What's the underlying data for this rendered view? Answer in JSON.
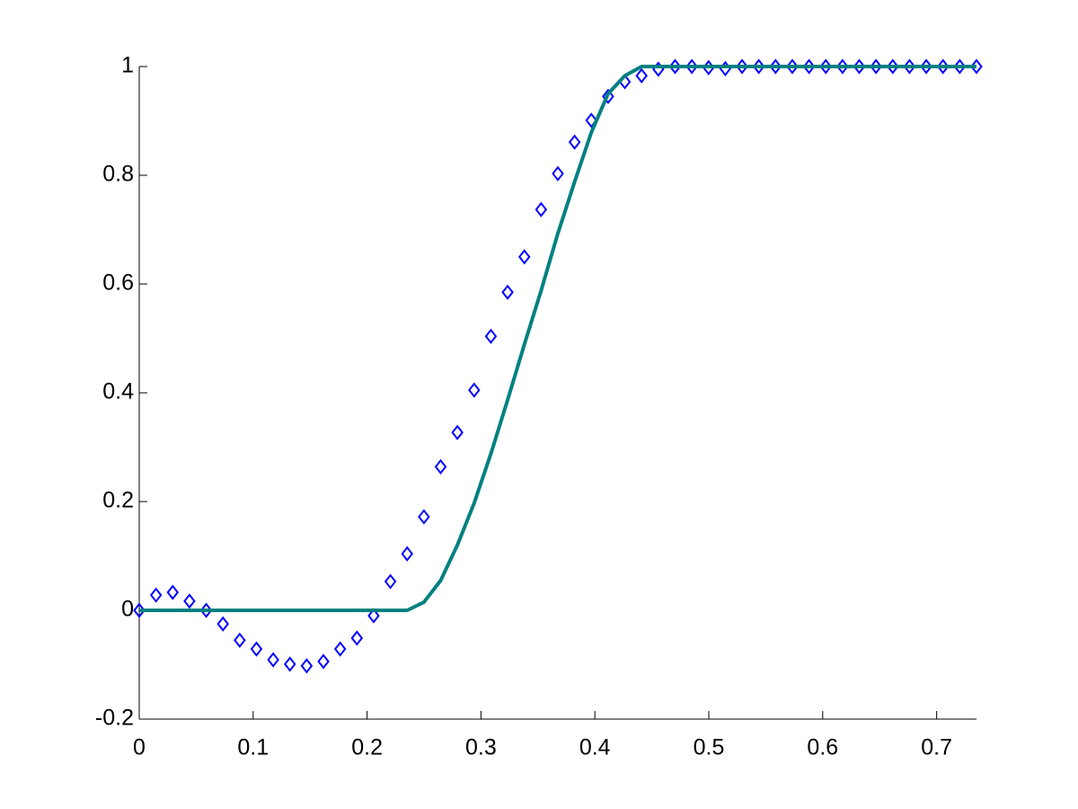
{
  "chart_data": {
    "type": "line",
    "x": [
      0,
      0.0147,
      0.0294,
      0.0441,
      0.0588,
      0.0735,
      0.0882,
      0.1029,
      0.1176,
      0.1323,
      0.147,
      0.1617,
      0.1764,
      0.1911,
      0.2058,
      0.2205,
      0.2352,
      0.2499,
      0.2646,
      0.2793,
      0.294,
      0.3087,
      0.3234,
      0.3381,
      0.3528,
      0.3675,
      0.3822,
      0.3969,
      0.4116,
      0.4263,
      0.441,
      0.4557,
      0.4704,
      0.4851,
      0.4998,
      0.5145,
      0.5292,
      0.5439,
      0.5586,
      0.5733,
      0.588,
      0.6027,
      0.6174,
      0.6321,
      0.6468,
      0.6615,
      0.6762,
      0.6909,
      0.7056,
      0.7203,
      0.735
    ],
    "series": [
      {
        "color": "#0000ff",
        "marker": "diamond",
        "line": false,
        "values": [
          0,
          0.028,
          0.033,
          0.017,
          0,
          -0.025,
          -0.055,
          -0.071,
          -0.091,
          -0.099,
          -0.102,
          -0.094,
          -0.071,
          -0.051,
          -0.01,
          0.053,
          0.104,
          0.172,
          0.264,
          0.327,
          0.405,
          0.504,
          0.585,
          0.65,
          0.737,
          0.803,
          0.861,
          0.901,
          0.945,
          0.972,
          0.983,
          0.995,
          1,
          1,
          0.998,
          0.996,
          1,
          1,
          1,
          1,
          1,
          1,
          1,
          1,
          1,
          1,
          1,
          1,
          1,
          1,
          1
        ]
      },
      {
        "color": "#008080",
        "marker": "none",
        "line": true,
        "values": [
          0,
          0,
          0,
          0,
          0,
          0,
          0,
          0,
          0,
          0,
          0,
          0,
          0,
          0,
          0,
          0,
          0,
          0.015,
          0.055,
          0.12,
          0.197,
          0.288,
          0.387,
          0.489,
          0.588,
          0.693,
          0.788,
          0.879,
          0.95,
          0.983,
          1,
          1,
          1,
          1,
          1,
          1,
          1,
          1,
          1,
          1,
          1,
          1,
          1,
          1,
          1,
          1,
          1,
          1,
          1,
          1,
          1
        ]
      }
    ],
    "xlim": [
      0,
      0.735
    ],
    "ylim": [
      -0.2,
      1
    ],
    "xticks": [
      0,
      0.1,
      0.2,
      0.3,
      0.4,
      0.5,
      0.6,
      0.7
    ],
    "yticks": [
      -0.2,
      0,
      0.2,
      0.4,
      0.6,
      0.8,
      1
    ],
    "grid": false
  }
}
